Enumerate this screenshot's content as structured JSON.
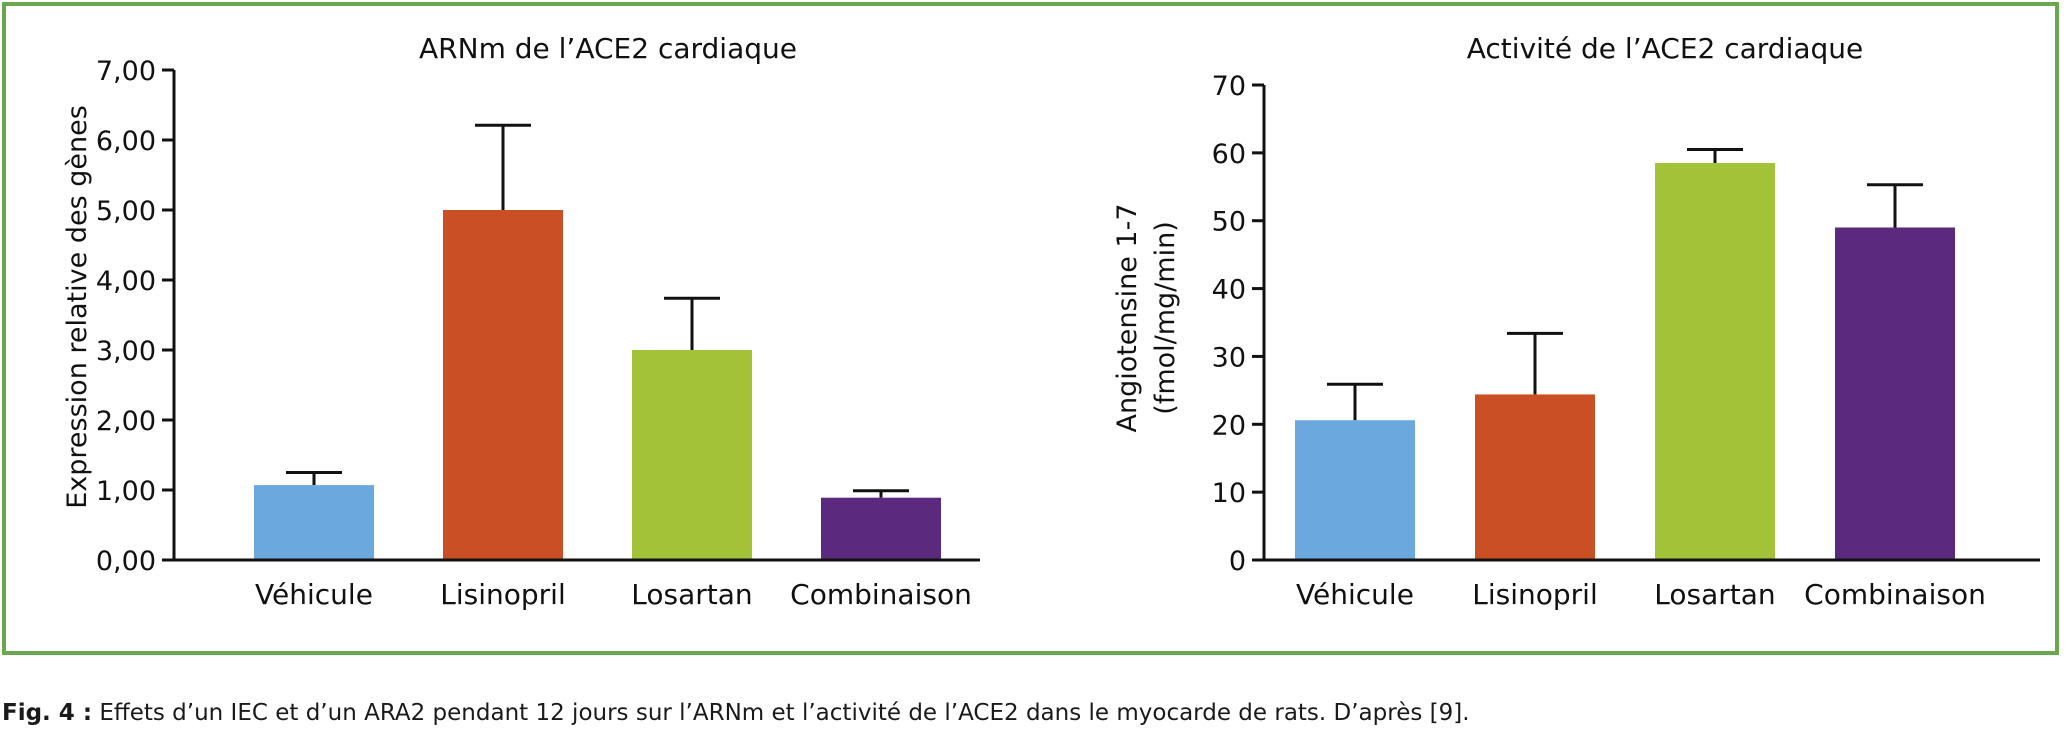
{
  "caption": {
    "label": "Fig. 4 :",
    "text": " Effets d’un IEC et d’un ARA2 pendant 12 jours sur l’ARNm et l’activité de l’ACE2 dans le myocarde de rats. D’après [9]."
  },
  "chart_data": [
    {
      "type": "bar",
      "title": "ARNm de l’ACE2 cardiaque",
      "xlabel": "",
      "ylabel": "Expression relative des gènes",
      "categories": [
        "Véhicule",
        "Lisinopril",
        "Losartan",
        "Combinaison"
      ],
      "values": [
        1.07,
        5.0,
        3.0,
        0.89
      ],
      "error_upper": [
        1.25,
        6.21,
        3.74,
        0.99
      ],
      "colors": [
        "#6aa8de",
        "#cb4f24",
        "#a2c237",
        "#5b2a7e"
      ],
      "ylim": [
        0,
        7
      ],
      "yticks": [
        0,
        1,
        2,
        3,
        4,
        5,
        6,
        7
      ],
      "ytick_labels": [
        "0,00",
        "1,00",
        "2,00",
        "3,00",
        "4,00",
        "5,00",
        "6,00",
        "7,00"
      ],
      "grid": false
    },
    {
      "type": "bar",
      "title": "Activité de l’ACE2 cardiaque",
      "xlabel": "",
      "ylabel": "Angiotensine 1-7",
      "ylabel2": "(fmol/mg/min)",
      "categories": [
        "Véhicule",
        "Lisinopril",
        "Losartan",
        "Combinaison"
      ],
      "values": [
        20.6,
        24.4,
        58.5,
        49.0
      ],
      "error_upper": [
        25.9,
        33.4,
        60.5,
        55.3
      ],
      "colors": [
        "#6aa8de",
        "#cb4f24",
        "#a2c237",
        "#5b2a7e"
      ],
      "ylim": [
        0,
        70
      ],
      "yticks": [
        0,
        10,
        20,
        30,
        40,
        50,
        60,
        70
      ],
      "ytick_labels": [
        "0",
        "10",
        "20",
        "30",
        "40",
        "50",
        "60",
        "70"
      ],
      "grid": false
    }
  ]
}
